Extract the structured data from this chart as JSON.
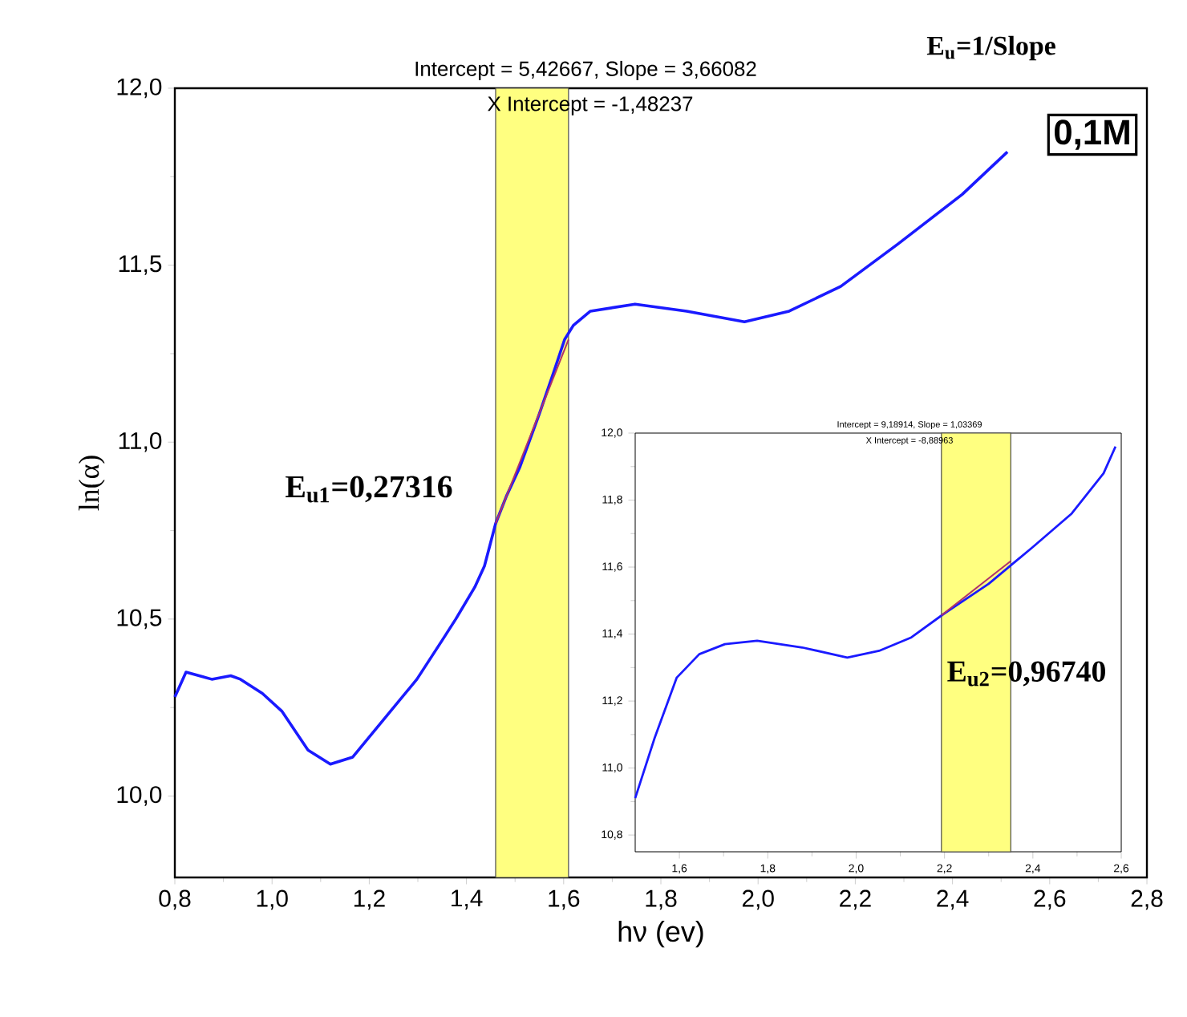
{
  "chart_data": [
    {
      "type": "line",
      "xlabel": "hν (ev)",
      "ylabel": "ln(α)",
      "annotations": [
        "Intercept = 5,42667, Slope = 3,66082",
        "X Intercept = -1,48237",
        "E$_{u}$=1/Slope",
        "0,1M",
        "E$_{u1}$=0,27316"
      ],
      "xlim": [
        0.8,
        2.8
      ],
      "ylim": [
        9.77,
        12.0
      ],
      "xticks": [
        {
          "value": 0.8,
          "label": "0,8"
        },
        {
          "value": 1.0,
          "label": "1,0"
        },
        {
          "value": 1.2,
          "label": "1,2"
        },
        {
          "value": 1.4,
          "label": "1,4"
        },
        {
          "value": 1.6,
          "label": "1,6"
        },
        {
          "value": 1.8,
          "label": "1,8"
        },
        {
          "value": 2.0,
          "label": "2,0"
        },
        {
          "value": 2.2,
          "label": "2,2"
        },
        {
          "value": 2.4,
          "label": "2,4"
        },
        {
          "value": 2.6,
          "label": "2,6"
        },
        {
          "value": 2.8,
          "label": "2,8"
        }
      ],
      "yticks": [
        {
          "value": 10.0,
          "label": "10,0"
        },
        {
          "value": 10.5,
          "label": "10,5"
        },
        {
          "value": 11.0,
          "label": "11,0"
        },
        {
          "value": 11.5,
          "label": "11,5"
        },
        {
          "value": 12.0,
          "label": "12,0"
        }
      ],
      "bands": [
        {
          "axis": "x",
          "from": 1.46,
          "to": 1.61,
          "color": "#ffff80"
        }
      ],
      "series": [
        {
          "color": "#1a1aff",
          "x": [
            0.8,
            0.823,
            0.85,
            0.876,
            0.915,
            0.935,
            0.98,
            1.02,
            1.074,
            1.12,
            1.166,
            1.232,
            1.298,
            1.35,
            1.378,
            1.417,
            1.437,
            1.46,
            1.483,
            1.51,
            1.55,
            1.58,
            1.602,
            1.62,
            1.655,
            1.747,
            1.853,
            1.972,
            2.064,
            2.17,
            2.288,
            2.42,
            2.513
          ],
          "values": [
            10.28,
            10.35,
            10.34,
            10.33,
            10.34,
            10.33,
            10.29,
            10.24,
            10.13,
            10.09,
            10.11,
            10.22,
            10.33,
            10.44,
            10.5,
            10.59,
            10.65,
            10.77,
            10.85,
            10.93,
            11.08,
            11.2,
            11.29,
            11.33,
            11.37,
            11.39,
            11.37,
            11.34,
            11.37,
            11.44,
            11.56,
            11.7,
            11.82
          ]
        },
        {
          "type": "line",
          "color": "#b0306a",
          "x": [
            1.46,
            1.61
          ],
          "values": [
            10.77,
            11.29
          ]
        }
      ]
    },
    {
      "type": "line",
      "annotations": [
        "Intercept = 9,18914, Slope = 1,03369",
        "X Intercept = -8,88963",
        "E$_{u2}$=0,96740"
      ],
      "xlim": [
        1.5,
        2.6
      ],
      "ylim": [
        10.75,
        12.0
      ],
      "xticks": [
        {
          "value": 1.6,
          "label": "1,6"
        },
        {
          "value": 1.8,
          "label": "1,8"
        },
        {
          "value": 2.0,
          "label": "2,0"
        },
        {
          "value": 2.2,
          "label": "2,2"
        },
        {
          "value": 2.4,
          "label": "2,4"
        },
        {
          "value": 2.6,
          "label": "2,6"
        }
      ],
      "yticks": [
        {
          "value": 10.8,
          "label": "10,8"
        },
        {
          "value": 11.0,
          "label": "11,0"
        },
        {
          "value": 11.2,
          "label": "11,2"
        },
        {
          "value": 11.4,
          "label": "11,4"
        },
        {
          "value": 11.6,
          "label": "11,6"
        },
        {
          "value": 11.8,
          "label": "11,8"
        },
        {
          "value": 12.0,
          "label": "12,0"
        }
      ],
      "bands": [
        {
          "axis": "x",
          "from": 2.193,
          "to": 2.35,
          "color": "#ffff80"
        }
      ],
      "series": [
        {
          "color": "#1a1aff",
          "x": [
            1.5,
            1.544,
            1.594,
            1.645,
            1.703,
            1.776,
            1.878,
            1.98,
            2.052,
            2.125,
            2.198,
            2.3,
            2.4,
            2.488,
            2.56,
            2.587
          ],
          "values": [
            10.91,
            11.09,
            11.27,
            11.34,
            11.37,
            11.38,
            11.36,
            11.33,
            11.35,
            11.39,
            11.46,
            11.55,
            11.66,
            11.76,
            11.88,
            11.96
          ]
        },
        {
          "type": "line",
          "color": "#b0306a",
          "x": [
            2.193,
            2.35
          ],
          "values": [
            11.456,
            11.618
          ]
        }
      ]
    }
  ]
}
